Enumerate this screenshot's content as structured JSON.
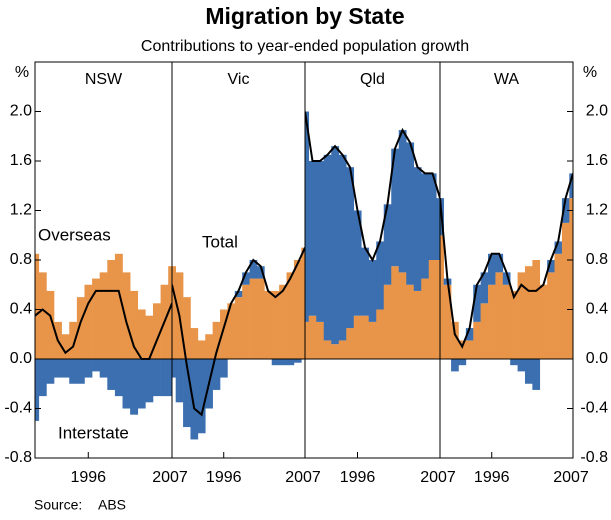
{
  "title": "Migration by State",
  "subtitle": "Contributions to year-ended population growth",
  "y_unit": "%",
  "source_label": "Source:",
  "source": "ABS",
  "chart_data": [
    {
      "type": "bar",
      "title": "NSW",
      "y_axis": "left",
      "x": [
        1989,
        1990,
        1991,
        1992,
        1993,
        1994,
        1995,
        1996,
        1997,
        1998,
        1999,
        2000,
        2001,
        2002,
        2003,
        2004,
        2005,
        2006,
        2007
      ],
      "xlim": [
        1989,
        2007
      ],
      "xticks": [
        1996,
        2007
      ],
      "ylim": [
        -0.8,
        2.4
      ],
      "yticks": [
        -0.8,
        -0.4,
        {
          "value": 0,
          "label": "0.0"
        },
        0.4,
        0.8,
        1.2,
        1.6,
        {
          "value": 2,
          "label": "2.0"
        }
      ],
      "series": [
        {
          "name": "Overseas",
          "color": "#e8954a",
          "values": [
            0.85,
            0.7,
            0.55,
            0.3,
            0.2,
            0.3,
            0.5,
            0.6,
            0.65,
            0.7,
            0.8,
            0.85,
            0.7,
            0.55,
            0.4,
            0.35,
            0.45,
            0.6,
            0.75
          ]
        },
        {
          "name": "Interstate",
          "color": "#3b6fb0",
          "values": [
            -0.5,
            -0.3,
            -0.2,
            -0.15,
            -0.15,
            -0.2,
            -0.2,
            -0.15,
            -0.1,
            -0.15,
            -0.25,
            -0.3,
            -0.4,
            -0.45,
            -0.4,
            -0.35,
            -0.3,
            -0.3,
            -0.3
          ]
        },
        {
          "name": "Total",
          "color": "#000000",
          "type": "line",
          "values": [
            0.35,
            0.4,
            0.35,
            0.15,
            0.05,
            0.1,
            0.3,
            0.45,
            0.55,
            0.55,
            0.55,
            0.55,
            0.3,
            0.1,
            0.0,
            0.0,
            0.15,
            0.3,
            0.45
          ]
        }
      ],
      "annotations": [
        "Overseas",
        "Interstate"
      ]
    },
    {
      "type": "bar",
      "title": "Vic",
      "x": [
        1989,
        1990,
        1991,
        1992,
        1993,
        1994,
        1995,
        1996,
        1997,
        1998,
        1999,
        2000,
        2001,
        2002,
        2003,
        2004,
        2005,
        2006,
        2007
      ],
      "xlim": [
        1989,
        2007
      ],
      "xticks": [
        1996,
        2007
      ],
      "ylim": [
        -0.8,
        2.4
      ],
      "series": [
        {
          "name": "Overseas",
          "color": "#e8954a",
          "values": [
            0.75,
            0.7,
            0.5,
            0.25,
            0.15,
            0.2,
            0.3,
            0.4,
            0.45,
            0.5,
            0.6,
            0.65,
            0.65,
            0.55,
            0.55,
            0.6,
            0.7,
            0.8,
            0.9
          ]
        },
        {
          "name": "Interstate",
          "color": "#3b6fb0",
          "values": [
            -0.15,
            -0.35,
            -0.55,
            -0.65,
            -0.6,
            -0.4,
            -0.25,
            -0.15,
            0.0,
            0.05,
            0.1,
            0.15,
            0.1,
            0.0,
            -0.05,
            -0.05,
            -0.05,
            -0.03,
            0.0
          ]
        },
        {
          "name": "Total",
          "color": "#000000",
          "type": "line",
          "values": [
            0.6,
            0.35,
            -0.05,
            -0.4,
            -0.45,
            -0.2,
            0.05,
            0.25,
            0.45,
            0.55,
            0.7,
            0.8,
            0.75,
            0.55,
            0.5,
            0.55,
            0.65,
            0.77,
            0.9
          ]
        }
      ],
      "annotations": [
        "Total"
      ]
    },
    {
      "type": "bar",
      "title": "Qld",
      "x": [
        1989,
        1990,
        1991,
        1992,
        1993,
        1994,
        1995,
        1996,
        1997,
        1998,
        1999,
        2000,
        2001,
        2002,
        2003,
        2004,
        2005,
        2006,
        2007
      ],
      "xlim": [
        1989,
        2007
      ],
      "xticks": [
        1996,
        2007
      ],
      "ylim": [
        -0.8,
        2.4
      ],
      "series": [
        {
          "name": "Overseas",
          "color": "#e8954a",
          "values": [
            0.3,
            0.35,
            0.3,
            0.15,
            0.12,
            0.15,
            0.25,
            0.35,
            0.35,
            0.3,
            0.4,
            0.6,
            0.75,
            0.7,
            0.6,
            0.55,
            0.65,
            0.8,
            0.8
          ]
        },
        {
          "name": "Interstate",
          "color": "#3b6fb0",
          "values": [
            1.7,
            1.25,
            1.3,
            1.5,
            1.6,
            1.5,
            1.3,
            0.85,
            0.55,
            0.5,
            0.55,
            0.65,
            0.95,
            1.15,
            1.15,
            1.0,
            0.85,
            0.7,
            0.5
          ]
        },
        {
          "name": "Total",
          "color": "#000000",
          "type": "line",
          "values": [
            2.0,
            1.6,
            1.6,
            1.65,
            1.72,
            1.65,
            1.55,
            1.2,
            0.9,
            0.8,
            0.95,
            1.25,
            1.7,
            1.85,
            1.75,
            1.55,
            1.5,
            1.5,
            1.3
          ]
        }
      ]
    },
    {
      "type": "bar",
      "title": "WA",
      "y_axis": "right",
      "x": [
        1989,
        1990,
        1991,
        1992,
        1993,
        1994,
        1995,
        1996,
        1997,
        1998,
        1999,
        2000,
        2001,
        2002,
        2003,
        2004,
        2005,
        2006,
        2007
      ],
      "xlim": [
        1989,
        2007
      ],
      "xticks": [
        1996,
        2007
      ],
      "ylim": [
        -0.8,
        2.4
      ],
      "yticks": [
        -0.8,
        -0.4,
        {
          "value": 0,
          "label": "0.0"
        },
        0.4,
        0.8,
        1.2,
        1.6,
        {
          "value": 2,
          "label": "2.0"
        }
      ],
      "series": [
        {
          "name": "Overseas",
          "color": "#e8954a",
          "values": [
            1.0,
            0.6,
            0.3,
            0.15,
            0.15,
            0.3,
            0.45,
            0.6,
            0.7,
            0.6,
            0.55,
            0.7,
            0.75,
            0.8,
            0.6,
            0.7,
            0.85,
            1.1,
            1.3
          ]
        },
        {
          "name": "Interstate",
          "color": "#3b6fb0",
          "values": [
            0.3,
            0.05,
            -0.1,
            -0.05,
            0.1,
            0.3,
            0.25,
            0.25,
            0.15,
            0.1,
            -0.05,
            -0.1,
            -0.2,
            -0.25,
            0.0,
            0.1,
            0.1,
            0.2,
            0.2
          ]
        },
        {
          "name": "Total",
          "color": "#000000",
          "type": "line",
          "values": [
            1.3,
            0.65,
            0.2,
            0.1,
            0.25,
            0.6,
            0.7,
            0.85,
            0.85,
            0.7,
            0.5,
            0.6,
            0.55,
            0.55,
            0.6,
            0.8,
            0.95,
            1.3,
            1.5
          ]
        }
      ]
    }
  ]
}
